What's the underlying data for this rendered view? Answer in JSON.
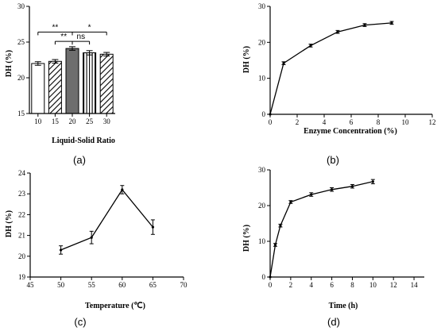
{
  "chart_data": [
    {
      "type": "bar",
      "panel_label": "(a)",
      "xlabel": "Liquid-Solid Ratio",
      "ylabel": "DH (%)",
      "categories": [
        "10",
        "15",
        "20",
        "25",
        "30"
      ],
      "values": [
        22.0,
        22.3,
        24.1,
        23.5,
        23.3
      ],
      "errors": [
        0.25,
        0.25,
        0.25,
        0.3,
        0.25
      ],
      "fills": [
        "white",
        "hatch",
        "solid-gray",
        "vertical-stripes",
        "hatch"
      ],
      "ylim": [
        15,
        30
      ],
      "yticks": [
        15,
        20,
        25,
        30
      ],
      "significance": [
        {
          "from": "10",
          "to": "20",
          "label": "**"
        },
        {
          "from": "15",
          "to": "20",
          "label": "**"
        },
        {
          "from": "20",
          "to": "25",
          "label": "ns"
        },
        {
          "from": "20",
          "to": "30",
          "label": "*"
        }
      ],
      "colors": {
        "solid": "#6e6e6e",
        "stroke": "#000000"
      }
    },
    {
      "type": "line",
      "panel_label": "(b)",
      "xlabel": "Enzyme Concentration (%)",
      "ylabel": "DH (%)",
      "x": [
        0,
        1,
        3,
        5,
        7,
        9
      ],
      "y": [
        0,
        14.2,
        19.1,
        22.9,
        24.8,
        25.4
      ],
      "errors": [
        0,
        0.4,
        0.4,
        0.4,
        0.4,
        0.4
      ],
      "xlim": [
        0,
        12
      ],
      "ylim": [
        0,
        30
      ],
      "xticks": [
        0,
        2,
        4,
        6,
        8,
        10,
        12
      ],
      "yticks": [
        0,
        10,
        20,
        30
      ]
    },
    {
      "type": "line",
      "panel_label": "(c)",
      "xlabel": "Temperature (℃)",
      "ylabel": "DH (%)",
      "x": [
        50,
        55,
        60,
        65
      ],
      "y": [
        20.3,
        20.9,
        23.2,
        21.4
      ],
      "errors": [
        0.2,
        0.3,
        0.2,
        0.35
      ],
      "xlim": [
        45,
        70
      ],
      "ylim": [
        19,
        24
      ],
      "xticks": [
        45,
        50,
        55,
        60,
        65,
        70
      ],
      "yticks": [
        19,
        20,
        21,
        22,
        23,
        24
      ]
    },
    {
      "type": "line",
      "panel_label": "(d)",
      "xlabel": "Time (h)",
      "ylabel": "DH (%)",
      "x": [
        0,
        0.5,
        1,
        2,
        4,
        6,
        8,
        10
      ],
      "y": [
        0,
        9.0,
        14.4,
        21.0,
        23.1,
        24.5,
        25.4,
        26.7
      ],
      "errors": [
        0,
        0.4,
        0.4,
        0.4,
        0.5,
        0.5,
        0.5,
        0.6
      ],
      "xlim": [
        0,
        15
      ],
      "ylim": [
        0,
        30
      ],
      "xticks": [
        0,
        2,
        4,
        6,
        8,
        10,
        12,
        14
      ],
      "yticks": [
        0,
        10,
        20,
        30
      ]
    }
  ]
}
